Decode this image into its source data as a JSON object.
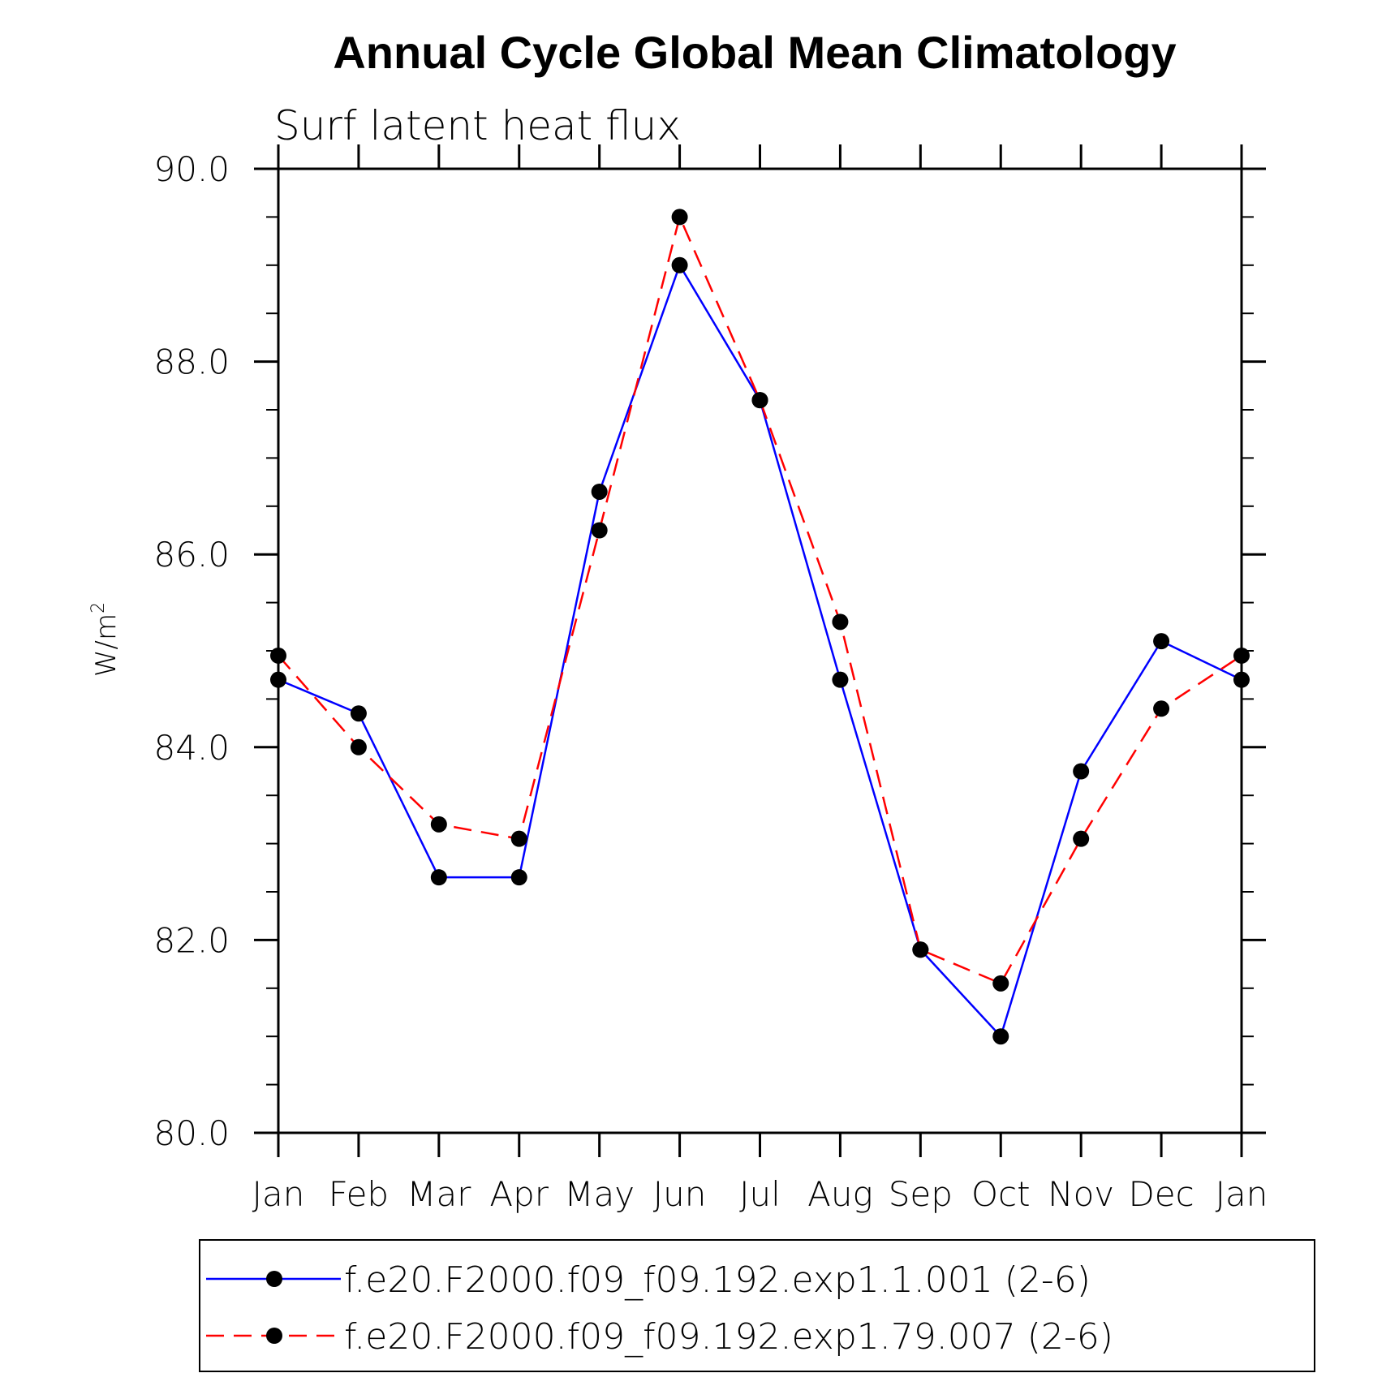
{
  "chart_data": {
    "type": "line",
    "title": "Annual Cycle Global Mean Climatology",
    "subtitle": "Surf latent heat flux",
    "xlabel": "",
    "ylabel": "W/m",
    "ylabel_superscript": "2",
    "categories": [
      "Jan",
      "Feb",
      "Mar",
      "Apr",
      "May",
      "Jun",
      "Jul",
      "Aug",
      "Sep",
      "Oct",
      "Nov",
      "Dec",
      "Jan"
    ],
    "ylim": [
      80.0,
      90.0
    ],
    "ytick_labels": [
      "80.0",
      "82.0",
      "84.0",
      "86.0",
      "88.0",
      "90.0"
    ],
    "yticks_major": [
      80,
      82,
      84,
      86,
      88,
      90
    ],
    "yticks_minor_step": 0.5,
    "series": [
      {
        "name": "f.e20.F2000.f09_f09.192.exp1.1.001 (2-6)",
        "color": "#0000ff",
        "dash": "solid",
        "values": [
          84.7,
          84.35,
          82.65,
          82.65,
          86.65,
          89.0,
          87.6,
          84.7,
          81.9,
          81.0,
          83.75,
          85.1,
          84.7
        ]
      },
      {
        "name": "f.e20.F2000.f09_f09.192.exp1.79.007 (2-6)",
        "color": "#ff0000",
        "dash": "dashed",
        "values": [
          84.95,
          84.0,
          83.2,
          83.05,
          86.25,
          89.5,
          87.6,
          85.3,
          81.9,
          81.55,
          83.05,
          84.4,
          84.95
        ]
      }
    ],
    "marker_color": "#000000",
    "legend_position": "bottom"
  }
}
